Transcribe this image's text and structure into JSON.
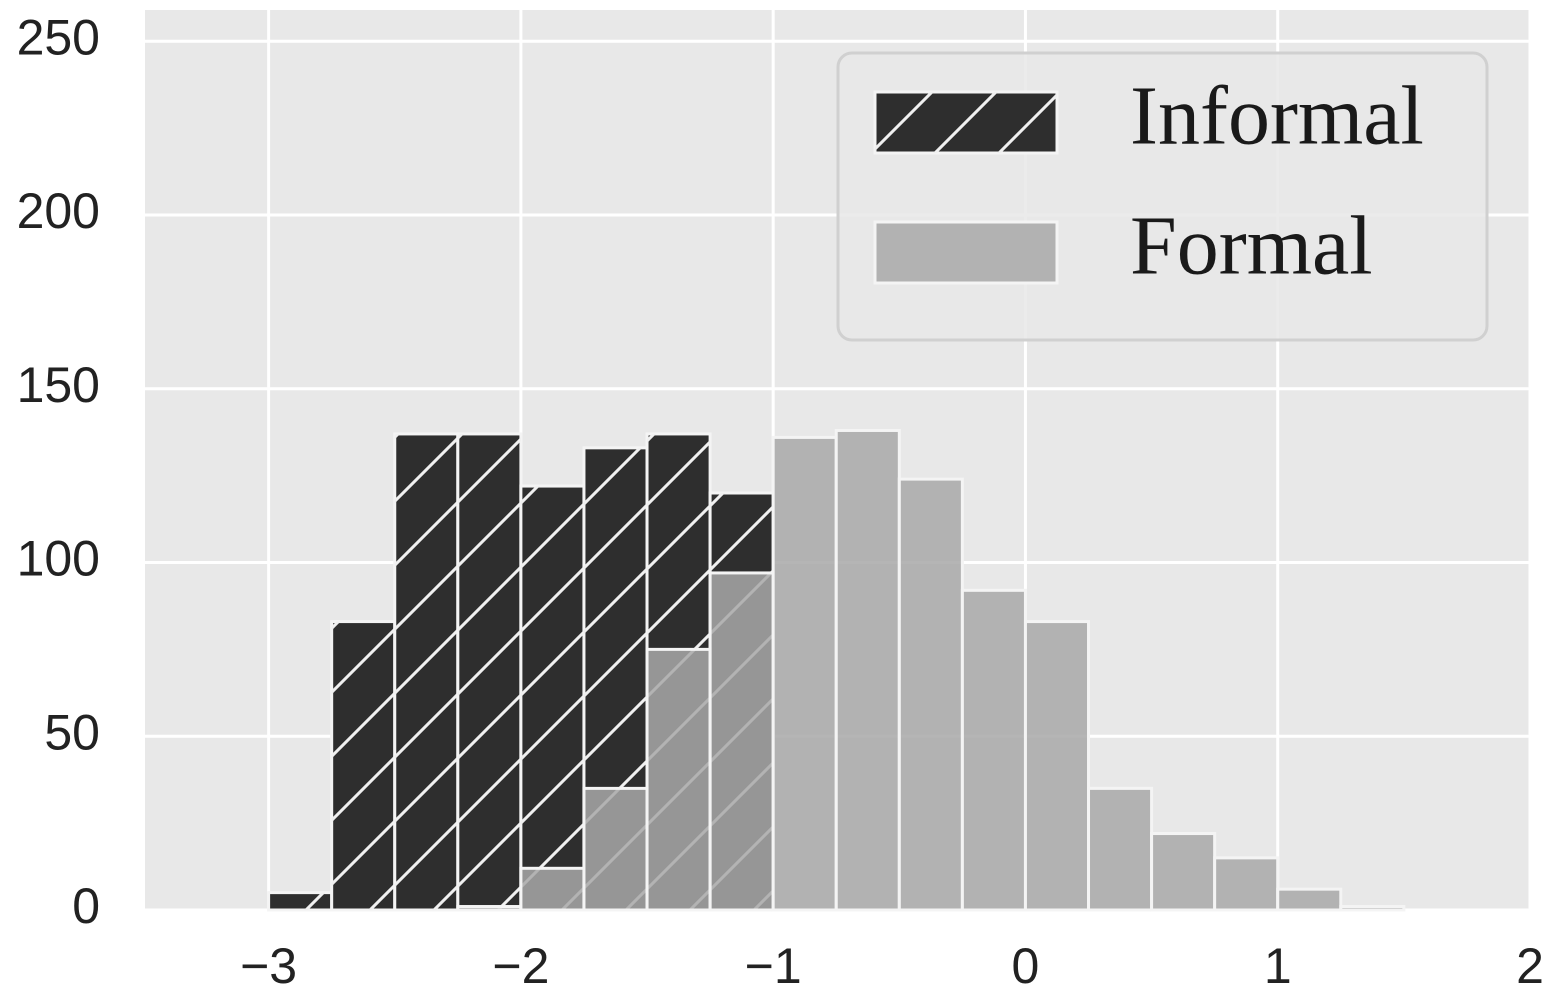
{
  "chart_data": {
    "type": "histogram",
    "bins": [
      -3,
      -2.75,
      -2.5,
      -2.25,
      -2,
      -1.75,
      -1.5,
      -1.25,
      -1,
      -0.75,
      -0.5,
      -0.25,
      0,
      0.25,
      0.5,
      0.75,
      1,
      1.25,
      1.5
    ],
    "series": [
      {
        "name": "Informal",
        "color": "#2e2e2e",
        "hatch": "/",
        "alpha": 1,
        "values": [
          5,
          83,
          137,
          137,
          122,
          133,
          137,
          120,
          0,
          0,
          0,
          0,
          0,
          0,
          0,
          0,
          0,
          0
        ]
      },
      {
        "name": "Formal",
        "color": "#a8a8a8",
        "hatch": null,
        "alpha": 0.85,
        "values": [
          0,
          0,
          0,
          1,
          12,
          35,
          75,
          97,
          136,
          138,
          124,
          92,
          83,
          35,
          22,
          15,
          6,
          1
        ]
      }
    ],
    "xlim": [
      -3.49,
      2
    ],
    "xticks": [
      {
        "value": -3,
        "label": "−3"
      },
      {
        "value": -2,
        "label": "−2"
      },
      {
        "value": -1,
        "label": "−1"
      },
      0,
      1,
      2
    ],
    "ylim": [
      0,
      259
    ],
    "yticks": [
      0,
      50,
      100,
      150,
      200,
      250
    ],
    "grid": true,
    "legend": "upper right"
  }
}
